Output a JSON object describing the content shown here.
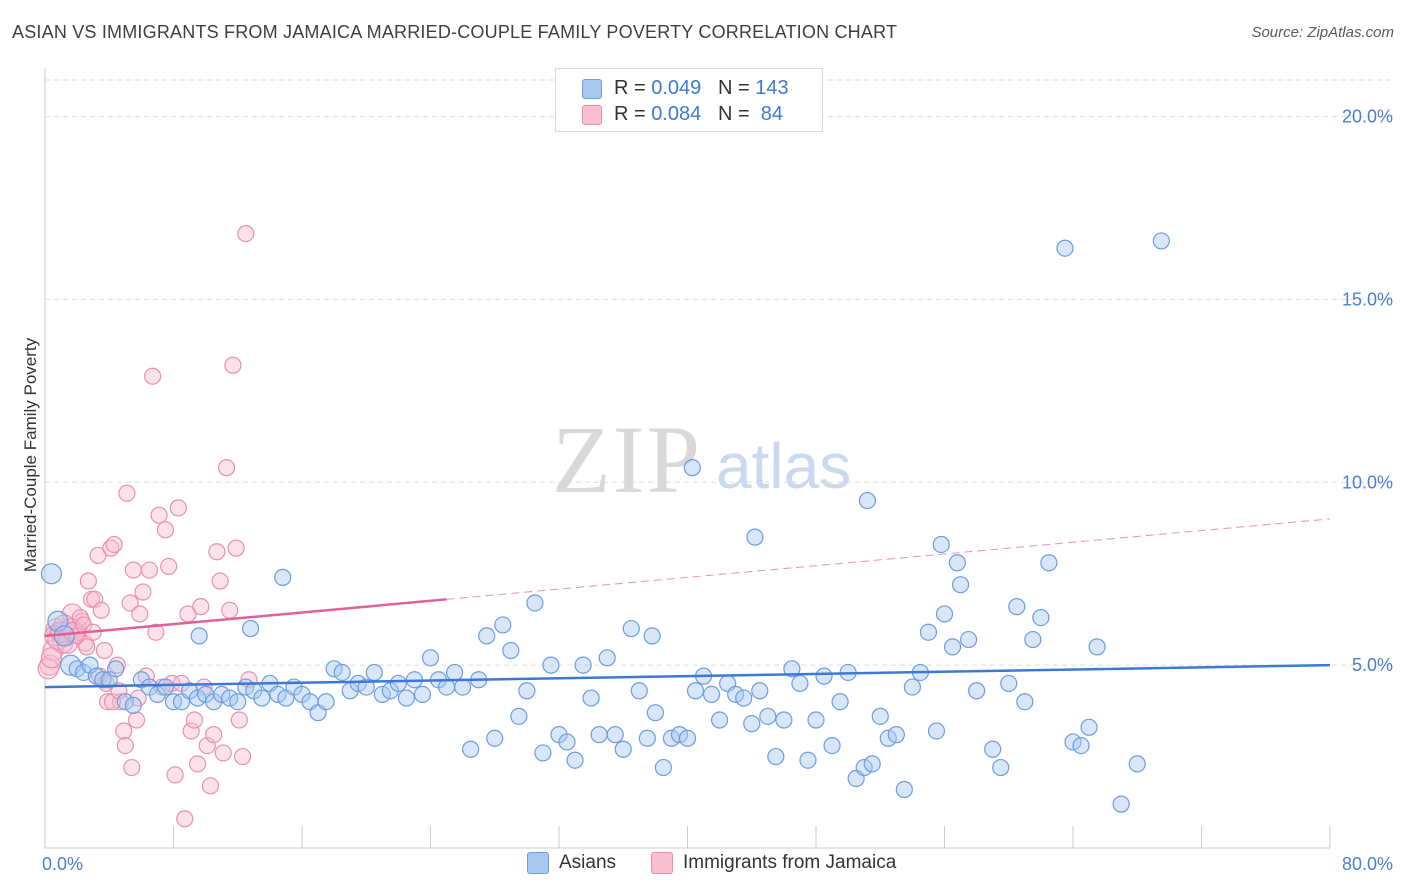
{
  "title": "ASIAN VS IMMIGRANTS FROM JAMAICA MARRIED-COUPLE FAMILY POVERTY CORRELATION CHART",
  "source": "Source: ZipAtlas.com",
  "watermark": {
    "zip": "ZIP",
    "atlas": "atlas"
  },
  "legend": {
    "r_label": "R =",
    "n_label": "N =",
    "rows": [
      {
        "r": "0.049",
        "n": "143"
      },
      {
        "r": "0.084",
        "n": "84"
      }
    ]
  },
  "colors": {
    "asian_fill": "#a9c8f0",
    "asian_stroke": "#6a9ee0",
    "asian_line": "#3d79d4",
    "jamaica_fill": "#f7bfd0",
    "jamaica_stroke": "#ec8fae",
    "jamaica_line": "#e0609a",
    "tick_text": "#4a7fd0",
    "grid": "#dddddd"
  },
  "chart_data": {
    "type": "scatter",
    "title": "ASIAN VS IMMIGRANTS FROM JAMAICA MARRIED-COUPLE FAMILY POVERTY CORRELATION CHART",
    "xlabel": "",
    "ylabel": "Married-Couple Family Poverty",
    "xlim": [
      0,
      80
    ],
    "ylim": [
      0,
      21
    ],
    "x_tick_labels": [
      "0.0%",
      "80.0%"
    ],
    "y_ticks": [
      5,
      10,
      15,
      20
    ],
    "y_tick_labels": [
      "5.0%",
      "10.0%",
      "15.0%",
      "20.0%"
    ],
    "grid": "horizontal dashed",
    "legend_position": "bottom",
    "series": [
      {
        "name": "Asians",
        "R": 0.049,
        "N": 143,
        "trend": {
          "x": [
            0,
            80
          ],
          "y": [
            4.4,
            5.0
          ]
        },
        "points": [
          [
            0.4,
            7.5
          ],
          [
            0.8,
            6.2
          ],
          [
            1.2,
            5.8
          ],
          [
            1.6,
            5.0
          ],
          [
            2.0,
            4.9
          ],
          [
            2.4,
            4.8
          ],
          [
            2.8,
            5.0
          ],
          [
            3.2,
            4.7
          ],
          [
            3.6,
            4.6
          ],
          [
            4.0,
            4.6
          ],
          [
            4.4,
            4.9
          ],
          [
            5.0,
            4.0
          ],
          [
            5.5,
            3.9
          ],
          [
            6.0,
            4.6
          ],
          [
            6.5,
            4.4
          ],
          [
            7.0,
            4.2
          ],
          [
            7.5,
            4.4
          ],
          [
            8.0,
            4.0
          ],
          [
            8.5,
            4.0
          ],
          [
            9.0,
            4.3
          ],
          [
            9.5,
            4.1
          ],
          [
            10.0,
            4.2
          ],
          [
            10.5,
            4.0
          ],
          [
            11.0,
            4.2
          ],
          [
            11.5,
            4.1
          ],
          [
            12.0,
            4.0
          ],
          [
            12.5,
            4.4
          ],
          [
            13.0,
            4.3
          ],
          [
            13.5,
            4.1
          ],
          [
            14.0,
            4.5
          ],
          [
            14.5,
            4.2
          ],
          [
            15.0,
            4.1
          ],
          [
            15.5,
            4.4
          ],
          [
            16.0,
            4.2
          ],
          [
            16.5,
            4.0
          ],
          [
            17.0,
            3.7
          ],
          [
            17.5,
            4.0
          ],
          [
            18.0,
            4.9
          ],
          [
            18.5,
            4.8
          ],
          [
            19.0,
            4.3
          ],
          [
            19.5,
            4.5
          ],
          [
            20.0,
            4.4
          ],
          [
            20.5,
            4.8
          ],
          [
            21.0,
            4.2
          ],
          [
            21.5,
            4.3
          ],
          [
            22.0,
            4.5
          ],
          [
            22.5,
            4.1
          ],
          [
            23.0,
            4.6
          ],
          [
            23.5,
            4.2
          ],
          [
            24.0,
            5.2
          ],
          [
            24.5,
            4.6
          ],
          [
            25.0,
            4.4
          ],
          [
            25.5,
            4.8
          ],
          [
            26.0,
            4.4
          ],
          [
            26.5,
            2.7
          ],
          [
            27.0,
            4.6
          ],
          [
            27.5,
            5.8
          ],
          [
            28.0,
            3.0
          ],
          [
            28.5,
            6.1
          ],
          [
            29.0,
            5.4
          ],
          [
            29.5,
            3.6
          ],
          [
            30.0,
            4.3
          ],
          [
            30.5,
            6.7
          ],
          [
            31.0,
            2.6
          ],
          [
            31.5,
            5.0
          ],
          [
            32.0,
            3.1
          ],
          [
            32.5,
            2.9
          ],
          [
            33.0,
            2.4
          ],
          [
            33.5,
            5.0
          ],
          [
            34.0,
            4.1
          ],
          [
            34.5,
            3.1
          ],
          [
            35.0,
            5.2
          ],
          [
            35.5,
            3.1
          ],
          [
            36.0,
            2.7
          ],
          [
            36.5,
            6.0
          ],
          [
            37.0,
            4.3
          ],
          [
            37.5,
            3.0
          ],
          [
            38.0,
            3.7
          ],
          [
            38.5,
            2.2
          ],
          [
            39.0,
            3.0
          ],
          [
            39.5,
            3.1
          ],
          [
            40.0,
            3.0
          ],
          [
            40.5,
            4.3
          ],
          [
            41.0,
            4.7
          ],
          [
            41.5,
            4.2
          ],
          [
            42.0,
            3.5
          ],
          [
            42.5,
            4.5
          ],
          [
            43.0,
            4.2
          ],
          [
            43.5,
            4.1
          ],
          [
            44.0,
            3.4
          ],
          [
            44.5,
            4.3
          ],
          [
            45.0,
            3.6
          ],
          [
            45.5,
            2.5
          ],
          [
            46.0,
            3.5
          ],
          [
            46.5,
            4.9
          ],
          [
            47.0,
            4.5
          ],
          [
            47.5,
            2.4
          ],
          [
            48.0,
            3.5
          ],
          [
            48.5,
            4.7
          ],
          [
            49.0,
            2.8
          ],
          [
            49.5,
            4.0
          ],
          [
            50.0,
            4.8
          ],
          [
            50.5,
            1.9
          ],
          [
            51.0,
            2.2
          ],
          [
            51.5,
            2.3
          ],
          [
            52.0,
            3.6
          ],
          [
            52.5,
            3.0
          ],
          [
            53.0,
            3.1
          ],
          [
            53.5,
            1.6
          ],
          [
            54.0,
            4.4
          ],
          [
            54.5,
            4.8
          ],
          [
            55.0,
            5.9
          ],
          [
            55.5,
            3.2
          ],
          [
            56.0,
            6.4
          ],
          [
            56.5,
            5.5
          ],
          [
            57.0,
            7.2
          ],
          [
            57.5,
            5.7
          ],
          [
            58.0,
            4.3
          ],
          [
            59.0,
            2.7
          ],
          [
            59.5,
            2.2
          ],
          [
            60.0,
            4.5
          ],
          [
            60.5,
            6.6
          ],
          [
            61.0,
            4.0
          ],
          [
            61.5,
            5.7
          ],
          [
            62.0,
            6.3
          ],
          [
            62.5,
            7.8
          ],
          [
            64.0,
            2.9
          ],
          [
            64.5,
            2.8
          ],
          [
            65.0,
            3.3
          ],
          [
            65.5,
            5.5
          ],
          [
            67.0,
            1.2
          ],
          [
            68.0,
            2.3
          ],
          [
            37.8,
            5.8
          ],
          [
            44.2,
            8.5
          ],
          [
            51.2,
            9.5
          ],
          [
            56.8,
            7.8
          ],
          [
            63.5,
            16.4
          ],
          [
            69.5,
            16.6
          ],
          [
            40.3,
            10.4
          ],
          [
            55.8,
            8.3
          ],
          [
            9.6,
            5.8
          ],
          [
            12.8,
            6.0
          ],
          [
            14.8,
            7.4
          ]
        ]
      },
      {
        "name": "Immigrants from Jamaica",
        "R": 0.084,
        "N": 84,
        "trend": {
          "x": [
            0,
            25
          ],
          "y": [
            5.8,
            6.8
          ],
          "dashed_extension": {
            "x": [
              25,
              80
            ],
            "y": [
              6.8,
              9.0
            ]
          }
        },
        "points": [
          [
            0.3,
            5.0
          ],
          [
            0.5,
            5.4
          ],
          [
            0.7,
            6.0
          ],
          [
            0.9,
            5.9
          ],
          [
            1.1,
            5.6
          ],
          [
            1.3,
            5.8
          ],
          [
            1.5,
            5.9
          ],
          [
            1.7,
            6.4
          ],
          [
            1.9,
            5.9
          ],
          [
            2.1,
            6.0
          ],
          [
            2.3,
            6.2
          ],
          [
            2.5,
            5.6
          ],
          [
            2.7,
            7.3
          ],
          [
            2.9,
            6.8
          ],
          [
            3.1,
            6.8
          ],
          [
            3.3,
            8.0
          ],
          [
            3.5,
            6.5
          ],
          [
            3.7,
            5.4
          ],
          [
            3.9,
            4.0
          ],
          [
            4.1,
            8.2
          ],
          [
            4.3,
            8.3
          ],
          [
            4.5,
            5.0
          ],
          [
            4.7,
            4.0
          ],
          [
            4.9,
            3.2
          ],
          [
            5.1,
            9.7
          ],
          [
            5.3,
            6.7
          ],
          [
            5.5,
            7.6
          ],
          [
            5.7,
            3.5
          ],
          [
            5.9,
            6.4
          ],
          [
            6.1,
            7.0
          ],
          [
            6.3,
            4.7
          ],
          [
            6.5,
            7.6
          ],
          [
            6.7,
            12.9
          ],
          [
            6.9,
            5.9
          ],
          [
            7.1,
            9.1
          ],
          [
            7.3,
            4.4
          ],
          [
            7.5,
            8.7
          ],
          [
            7.7,
            7.7
          ],
          [
            7.9,
            4.5
          ],
          [
            8.1,
            2.0
          ],
          [
            8.3,
            9.3
          ],
          [
            8.5,
            4.5
          ],
          [
            8.7,
            0.8
          ],
          [
            8.9,
            6.4
          ],
          [
            9.1,
            3.2
          ],
          [
            9.3,
            3.5
          ],
          [
            9.5,
            2.3
          ],
          [
            9.7,
            6.6
          ],
          [
            9.9,
            4.4
          ],
          [
            10.1,
            2.8
          ],
          [
            10.3,
            1.7
          ],
          [
            10.5,
            3.1
          ],
          [
            10.7,
            8.1
          ],
          [
            10.9,
            7.3
          ],
          [
            11.1,
            2.6
          ],
          [
            11.3,
            10.4
          ],
          [
            11.5,
            6.5
          ],
          [
            11.7,
            13.2
          ],
          [
            11.9,
            8.2
          ],
          [
            12.1,
            3.5
          ],
          [
            12.3,
            2.5
          ],
          [
            12.5,
            16.8
          ],
          [
            12.7,
            4.6
          ],
          [
            0.2,
            4.9
          ],
          [
            0.4,
            5.2
          ],
          [
            0.6,
            5.8
          ],
          [
            0.8,
            5.7
          ],
          [
            1.0,
            5.9
          ],
          [
            1.2,
            6.1
          ],
          [
            1.4,
            5.6
          ],
          [
            1.6,
            6.0
          ],
          [
            1.8,
            5.9
          ],
          [
            2.0,
            5.8
          ],
          [
            2.2,
            6.3
          ],
          [
            2.4,
            6.1
          ],
          [
            2.6,
            5.5
          ],
          [
            3.0,
            5.9
          ],
          [
            3.4,
            4.7
          ],
          [
            3.8,
            4.5
          ],
          [
            4.2,
            4.0
          ],
          [
            4.6,
            4.3
          ],
          [
            5.0,
            2.8
          ],
          [
            5.4,
            2.2
          ],
          [
            5.8,
            4.1
          ]
        ]
      }
    ]
  }
}
